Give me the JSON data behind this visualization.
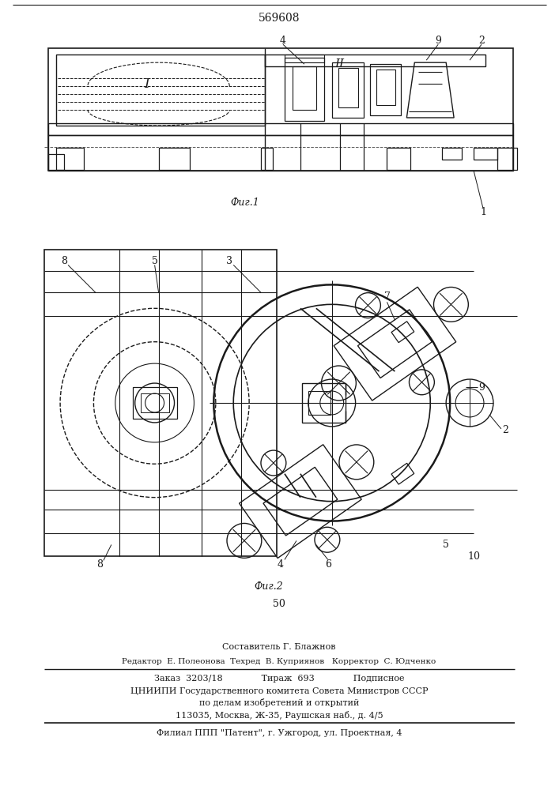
{
  "patent_number": "569608",
  "page_number": "50",
  "fig1_label": "Фиг.1",
  "fig2_label": "Фиг.2",
  "label_I": "I",
  "label_II": "II",
  "composited_by": "Составитель Г. Блажнов",
  "editor_line": "Редактор  Е. Полеонова  Техред  В. Куприянов   Корректор  С. Юдченко",
  "order_line": "Заказ  3203/18              Тираж  693              Подписное",
  "org_line1": "ЦНИИПИ Государственного комитета Совета Министров СССР",
  "org_line2": "по делам изобретений и открытий",
  "address_line": "113035, Москва, Ж-35, Раушская наб., д. 4/5",
  "branch_line": "Филиал ППП \"Патент\", г. Ужгород, ул. Проектная, 4",
  "bg_color": "#ffffff",
  "line_color": "#1a1a1a",
  "text_color": "#1a1a1a"
}
